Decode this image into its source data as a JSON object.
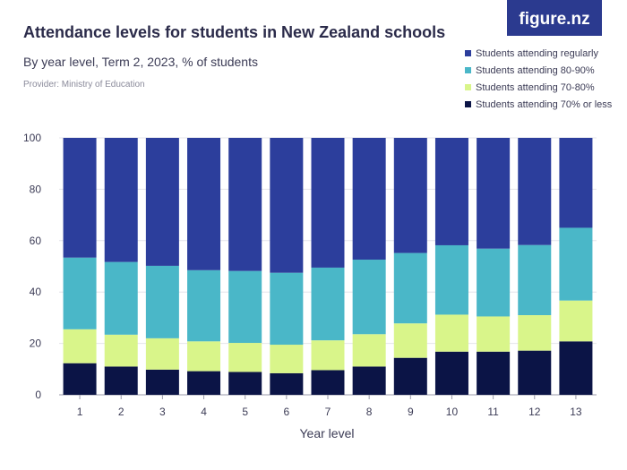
{
  "brand": {
    "logo_text": "figure.nz",
    "color": "#2b3a8f"
  },
  "chart_data": {
    "type": "bar",
    "stacked": true,
    "title": "Attendance levels for students in New Zealand schools",
    "subtitle": "By year level, Term 2, 2023, % of students",
    "provider": "Provider: Ministry of Education",
    "xlabel": "Year level",
    "ylabel": "",
    "ylim": [
      0,
      100
    ],
    "yticks": [
      0,
      20,
      40,
      60,
      80,
      100
    ],
    "grid": true,
    "legend_position": "top-right",
    "categories": [
      "1",
      "2",
      "3",
      "4",
      "5",
      "6",
      "7",
      "8",
      "9",
      "10",
      "11",
      "12",
      "13"
    ],
    "series": [
      {
        "name": "Students attending 70% or less",
        "color": "#0b1446",
        "values": [
          12.3,
          11.0,
          9.8,
          9.2,
          8.9,
          8.4,
          9.6,
          11.0,
          14.4,
          16.8,
          16.8,
          17.2,
          20.8
        ]
      },
      {
        "name": "Students attending 70-80%",
        "color": "#d9f58a",
        "values": [
          13.2,
          12.4,
          12.2,
          11.6,
          11.3,
          11.1,
          11.6,
          12.6,
          13.4,
          14.4,
          13.7,
          13.8,
          15.9
        ]
      },
      {
        "name": "Students attending 80-90%",
        "color": "#4ab7c8",
        "values": [
          27.9,
          28.3,
          28.2,
          27.7,
          28.0,
          28.0,
          28.3,
          29.0,
          27.4,
          27.0,
          26.4,
          27.3,
          28.3
        ]
      },
      {
        "name": "Students attending regularly",
        "color": "#2c3e9c",
        "values": [
          46.6,
          48.3,
          49.8,
          51.5,
          51.8,
          52.5,
          50.5,
          47.4,
          44.8,
          41.8,
          43.1,
          41.7,
          35.0
        ]
      }
    ],
    "legend_order": [
      "Students attending regularly",
      "Students attending 80-90%",
      "Students attending 70-80%",
      "Students attending 70% or less"
    ]
  }
}
